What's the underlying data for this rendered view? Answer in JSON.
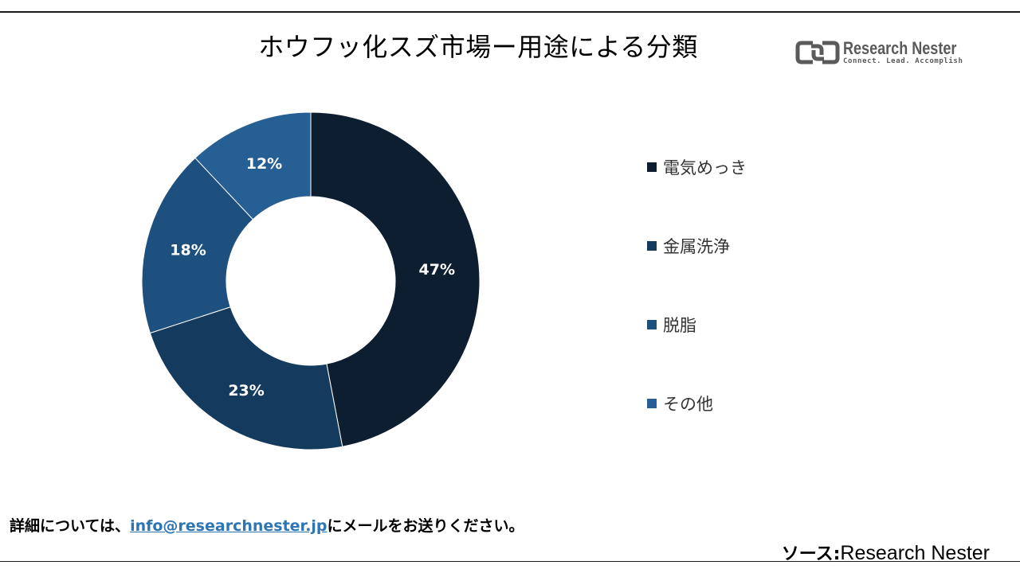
{
  "title": "ホウフッ化スズ市場ー用途による分類",
  "logo": {
    "name": "Research Nester",
    "tagline": "Connect. Lead. Accomplish"
  },
  "footer": {
    "prefix": "詳細については、",
    "email": "info@researchnester.jp",
    "suffix": "にメールをお送りください。"
  },
  "source": {
    "label": "ソース:",
    "value": "Research Nester"
  },
  "colors": {
    "logo": "#5a5a5a",
    "link": "#2e75b6"
  },
  "chart_data": {
    "type": "pie",
    "donut": true,
    "categories": [
      "電気めっき",
      "金属洗浄",
      "脱脂",
      "その他"
    ],
    "values": [
      47,
      23,
      18,
      12
    ],
    "labels": [
      "47%",
      "23%",
      "18%",
      "12%"
    ],
    "colors": [
      "#0d1e31",
      "#143a5e",
      "#1d4f7f",
      "#265f94"
    ],
    "legend_position": "right"
  }
}
